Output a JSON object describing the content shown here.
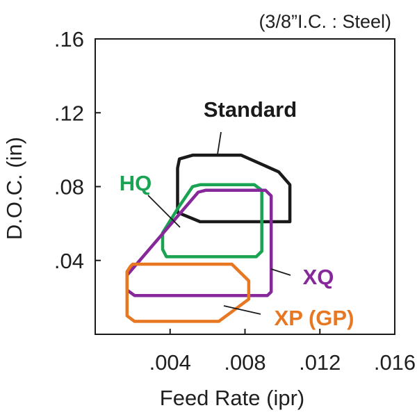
{
  "chart_data": {
    "type": "area",
    "subtitle": "(3/8”I.C. : Steel)",
    "xlabel": "Feed Rate (ipr)",
    "ylabel": "D.O.C. (in)",
    "xlim": [
      0,
      0.016
    ],
    "ylim": [
      0,
      0.16
    ],
    "x_ticks": [
      ".004",
      ".008",
      ".012",
      ".016"
    ],
    "x_tick_values": [
      0.004,
      0.008,
      0.012,
      0.016
    ],
    "y_ticks": [
      ".04",
      ".08",
      ".12",
      ".16"
    ],
    "y_tick_values": [
      0.04,
      0.08,
      0.12,
      0.16
    ],
    "grid": false,
    "series": [
      {
        "name": "Standard",
        "color": "#1a1a1a",
        "points": [
          [
            0.0045,
            0.095
          ],
          [
            0.0052,
            0.097
          ],
          [
            0.0078,
            0.097
          ],
          [
            0.0098,
            0.088
          ],
          [
            0.0104,
            0.081
          ],
          [
            0.0104,
            0.061
          ],
          [
            0.0056,
            0.061
          ],
          [
            0.0044,
            0.066
          ],
          [
            0.0044,
            0.09
          ]
        ]
      },
      {
        "name": "HQ",
        "color": "#1aa352",
        "points": [
          [
            0.0052,
            0.08
          ],
          [
            0.0056,
            0.081
          ],
          [
            0.0085,
            0.081
          ],
          [
            0.0089,
            0.078
          ],
          [
            0.0089,
            0.045
          ],
          [
            0.0086,
            0.042
          ],
          [
            0.0038,
            0.042
          ],
          [
            0.0036,
            0.046
          ],
          [
            0.0036,
            0.055
          ],
          [
            0.0044,
            0.068
          ]
        ]
      },
      {
        "name": "XQ",
        "color": "#86289a",
        "points": [
          [
            0.0055,
            0.077
          ],
          [
            0.0059,
            0.078
          ],
          [
            0.0091,
            0.078
          ],
          [
            0.0094,
            0.075
          ],
          [
            0.0094,
            0.023
          ],
          [
            0.0092,
            0.021
          ],
          [
            0.0021,
            0.021
          ],
          [
            0.0017,
            0.024
          ],
          [
            0.0017,
            0.032
          ],
          [
            0.0028,
            0.045
          ]
        ]
      },
      {
        "name": "XP (GP)",
        "color": "#e87722",
        "points": [
          [
            0.0019,
            0.037
          ],
          [
            0.002,
            0.038
          ],
          [
            0.0073,
            0.038
          ],
          [
            0.0082,
            0.029
          ],
          [
            0.0082,
            0.019
          ],
          [
            0.0066,
            0.007
          ],
          [
            0.0021,
            0.007
          ],
          [
            0.0017,
            0.01
          ],
          [
            0.0017,
            0.034
          ]
        ]
      }
    ],
    "annotations": [
      {
        "series": "Standard",
        "text": "Standard"
      },
      {
        "series": "HQ",
        "text": "HQ"
      },
      {
        "series": "XQ",
        "text": "XQ"
      },
      {
        "series": "XP (GP)",
        "text": "XP (GP)"
      }
    ]
  }
}
